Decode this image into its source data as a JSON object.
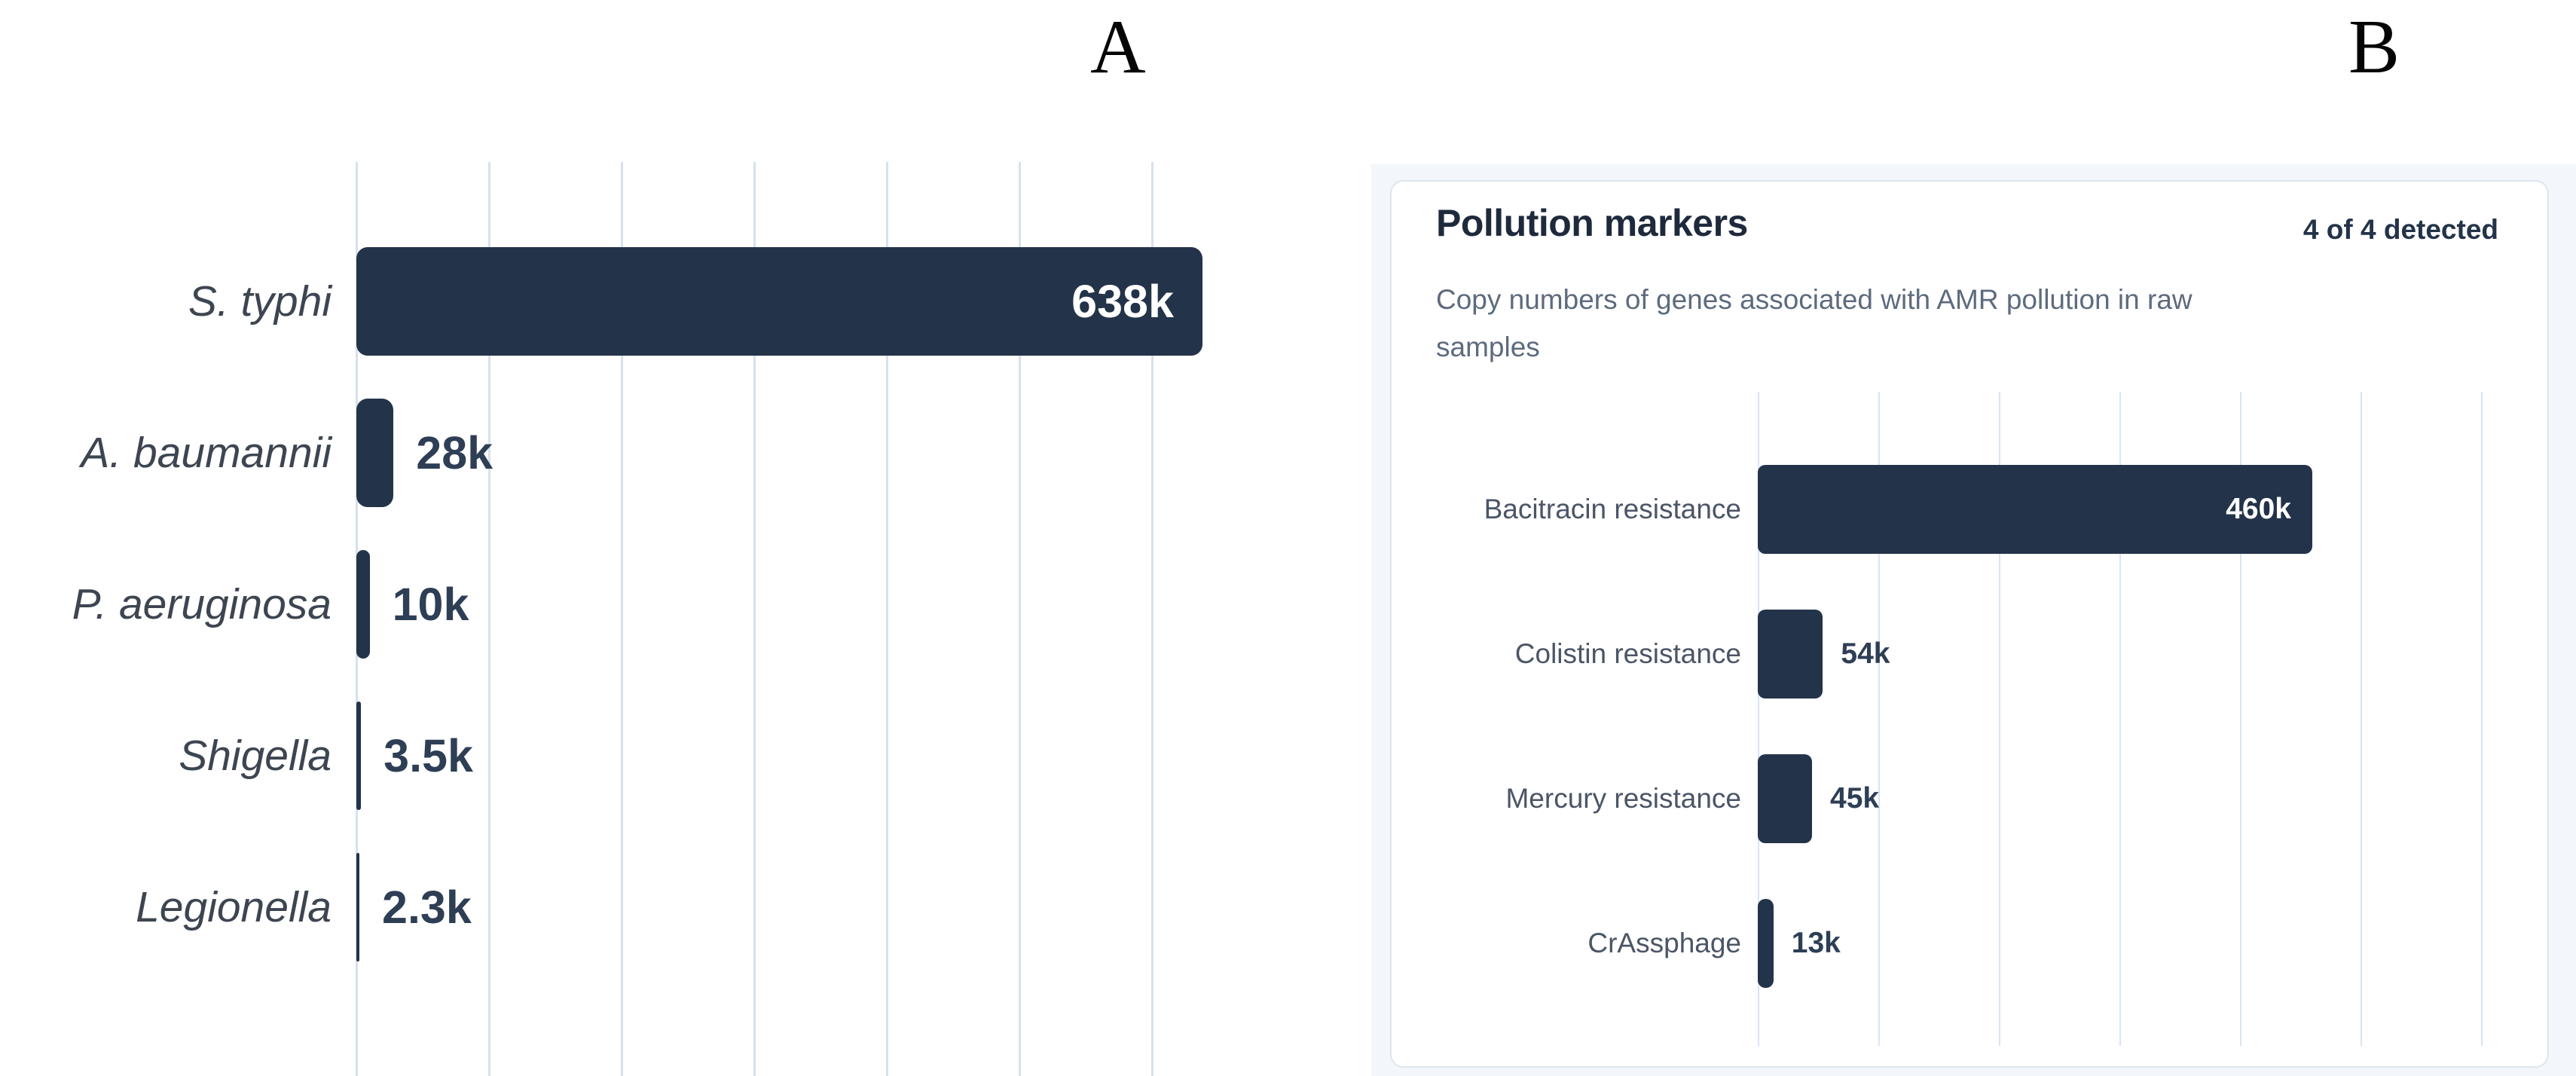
{
  "figure": {
    "panel_a_letter": "A",
    "panel_b_letter": "B"
  },
  "card": {
    "title": "Pollution markers",
    "detected": "4 of 4 detected",
    "subtitle": "Copy numbers of genes associated with AMR pollution in raw samples",
    "subtitle_lines": [
      "Copy numbers of genes associated with AMR pollution in raw",
      "samples"
    ]
  },
  "colors": {
    "bar": "#233349",
    "inside_value_text": "#ffffff",
    "value_text": "#2d3e55",
    "label_text_a": "#3d4551",
    "label_text_b": "#4b5566",
    "gridline_a": "#d6e1ee",
    "gridline_b": "#d9e4f1",
    "card_border": "#dde6ef",
    "card_bg": "#ffffff",
    "panel_bg": "#f3f6fa",
    "title_text": "#1e2a3c",
    "detected_text": "#233349",
    "subtitle_text": "#5d6b7e",
    "panel_letter_text": "#050505"
  },
  "chart_data": [
    {
      "type": "bar",
      "orientation": "horizontal",
      "panel": "A",
      "title": "",
      "categories": [
        "S. typhi",
        "A. baumannii",
        "P. aeruginosa",
        "Shigella",
        "Legionella"
      ],
      "values": [
        638000,
        28000,
        10000,
        3500,
        2300
      ],
      "value_labels": [
        "638k",
        "28k",
        "10k",
        "3.5k",
        "2.3k"
      ],
      "xlim": [
        0,
        700000
      ],
      "gridline_interval": 100000,
      "grid": true,
      "legend": false
    },
    {
      "type": "bar",
      "orientation": "horizontal",
      "panel": "B",
      "title": "Pollution markers",
      "subtitle": "Copy numbers of genes associated with AMR pollution in raw samples",
      "annotation": "4 of 4 detected",
      "categories": [
        "Bacitracin resistance",
        "Colistin resistance",
        "Mercury resistance",
        "CrAssphage"
      ],
      "values": [
        460000,
        54000,
        45000,
        13000
      ],
      "value_labels": [
        "460k",
        "54k",
        "45k",
        "13k"
      ],
      "xlim": [
        0,
        660000
      ],
      "gridline_interval": 100000,
      "grid": true,
      "legend": false
    }
  ]
}
